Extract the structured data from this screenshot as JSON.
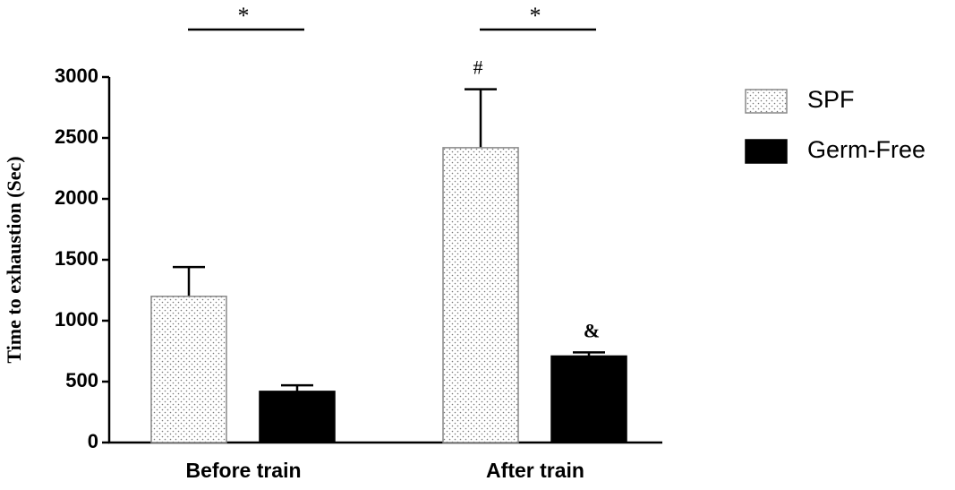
{
  "chart_data": {
    "type": "bar",
    "y_label": "Time to exhaustion (Sec)",
    "categories": [
      "Before train",
      "After train"
    ],
    "series": [
      {
        "name": "SPF",
        "color": "#ffffff",
        "values": [
          1200,
          2420
        ],
        "errors": [
          240,
          480
        ],
        "annotations": [
          null,
          "#"
        ]
      },
      {
        "name": "Germ-Free",
        "color": "#000000",
        "values": [
          420,
          710
        ],
        "errors": [
          50,
          30
        ],
        "annotations": [
          null,
          "&"
        ]
      }
    ],
    "group_annotations": [
      "*",
      "*"
    ],
    "ylim": [
      0,
      3000
    ],
    "yticks": [
      0,
      500,
      1000,
      1500,
      2000,
      2500,
      3000
    ],
    "legend": "right"
  }
}
